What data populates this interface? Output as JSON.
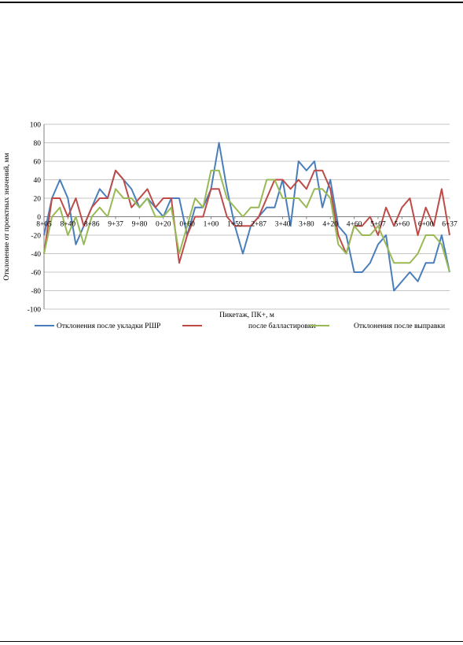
{
  "chart_data": {
    "type": "line",
    "title": "",
    "xlabel": "Пикетаж, ПК+, м",
    "ylabel": "Отклонение от проектных значений, мм",
    "ylim": [
      -100,
      100
    ],
    "yticks": [
      100,
      80,
      60,
      40,
      20,
      0,
      -20,
      -40,
      -60,
      -80,
      -100
    ],
    "grid": true,
    "legend_position": "bottom",
    "tick_labels": [
      "8+05",
      "8+40",
      "8+86",
      "9+37",
      "9+80",
      "0+20",
      "0+60",
      "1+00",
      "1+59",
      "2+87",
      "3+40",
      "3+80",
      "4+20",
      "4+60",
      "5+07",
      "5+60",
      "6+00",
      "6+37"
    ],
    "series": [
      {
        "name": "Отклонения после укладки РШР",
        "color": "#4a7ebb",
        "values": [
          -20,
          20,
          40,
          20,
          -30,
          -10,
          10,
          30,
          20,
          50,
          40,
          30,
          10,
          20,
          10,
          0,
          20,
          20,
          -20,
          10,
          10,
          30,
          80,
          30,
          -10,
          -40,
          -10,
          0,
          10,
          10,
          40,
          -10,
          60,
          50,
          60,
          10,
          40,
          -10,
          -20,
          -60,
          -60,
          -50,
          -30,
          -20,
          -80,
          -70,
          -60,
          -70,
          -50,
          -50,
          -20,
          -60
        ]
      },
      {
        "name": "после балластировки",
        "color": "#be4b48",
        "values": [
          -40,
          20,
          20,
          0,
          20,
          -10,
          10,
          20,
          20,
          50,
          40,
          10,
          20,
          30,
          10,
          20,
          20,
          -50,
          -20,
          0,
          0,
          30,
          30,
          0,
          -10,
          -10,
          -10,
          0,
          20,
          40,
          40,
          30,
          40,
          30,
          50,
          50,
          30,
          -20,
          -40,
          -10,
          -10,
          0,
          -20,
          10,
          -10,
          10,
          20,
          -20,
          10,
          -10,
          30,
          -20
        ]
      },
      {
        "name": "Отклонения после выправки",
        "color": "#98b954",
        "values": [
          -40,
          0,
          10,
          -20,
          0,
          -30,
          0,
          10,
          0,
          30,
          20,
          20,
          10,
          20,
          0,
          0,
          10,
          -40,
          -10,
          20,
          10,
          50,
          50,
          20,
          10,
          0,
          10,
          10,
          40,
          40,
          20,
          20,
          20,
          10,
          30,
          30,
          20,
          -30,
          -40,
          -10,
          -20,
          -20,
          -10,
          -30,
          -50,
          -50,
          -50,
          -40,
          -20,
          -20,
          -30,
          -60
        ]
      }
    ]
  }
}
